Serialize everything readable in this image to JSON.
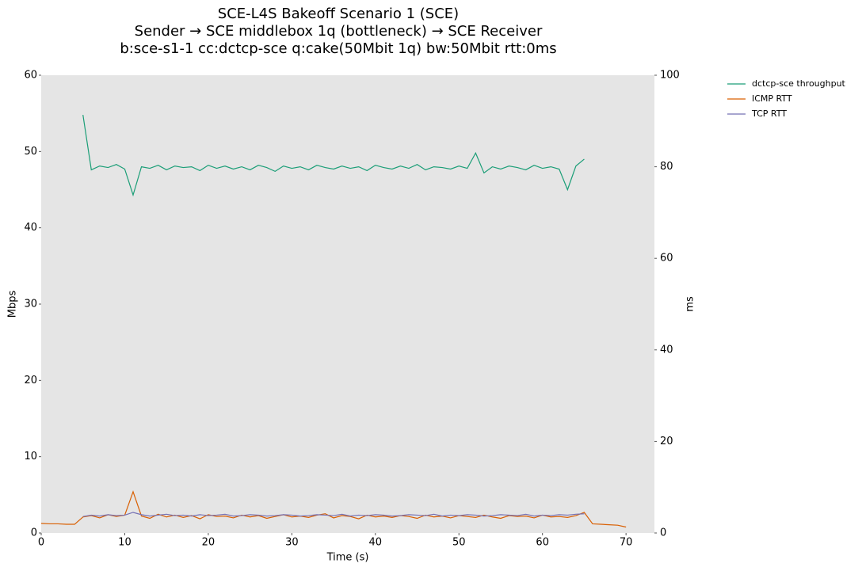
{
  "chart_data": {
    "type": "line",
    "title": [
      "SCE-L4S Bakeoff Scenario 1 (SCE)",
      "Sender → SCE middlebox 1q (bottleneck) → SCE Receiver",
      "b:sce-s1-1 cc:dctcp-sce q:cake(50Mbit 1q) bw:50Mbit rtt:0ms"
    ],
    "x_label": "Time (s)",
    "y_label": "Mbps",
    "y2_label": "ms",
    "xlim": [
      0,
      73.4
    ],
    "xticks": [
      0,
      10,
      20,
      30,
      40,
      50,
      60,
      70
    ],
    "ylim": [
      0,
      60
    ],
    "yticks": [
      0,
      10,
      20,
      30,
      40,
      50,
      60
    ],
    "y2lim": [
      0,
      100
    ],
    "y2ticks": [
      0,
      20,
      40,
      60,
      80,
      100
    ],
    "grid": false,
    "legend": "outside-upper-right",
    "x": [
      0,
      1,
      2,
      3,
      4,
      5,
      6,
      7,
      8,
      9,
      10,
      11,
      12,
      13,
      14,
      15,
      16,
      17,
      18,
      19,
      20,
      21,
      22,
      23,
      24,
      25,
      26,
      27,
      28,
      29,
      30,
      31,
      32,
      33,
      34,
      35,
      36,
      37,
      38,
      39,
      40,
      41,
      42,
      43,
      44,
      45,
      46,
      47,
      48,
      49,
      50,
      51,
      52,
      53,
      54,
      55,
      56,
      57,
      58,
      59,
      60,
      61,
      62,
      63,
      64,
      65,
      66,
      67,
      68,
      69,
      70
    ],
    "series": [
      {
        "name": "dctcp-sce throughput",
        "color": "#1b9e77",
        "axis": "y",
        "values": [
          null,
          null,
          null,
          null,
          null,
          54.8,
          47.6,
          48.1,
          47.9,
          48.3,
          47.7,
          44.3,
          48.0,
          47.8,
          48.2,
          47.6,
          48.1,
          47.9,
          48.0,
          47.5,
          48.2,
          47.8,
          48.1,
          47.7,
          48.0,
          47.6,
          48.2,
          47.9,
          47.4,
          48.1,
          47.8,
          48.0,
          47.6,
          48.2,
          47.9,
          47.7,
          48.1,
          47.8,
          48.0,
          47.5,
          48.2,
          47.9,
          47.7,
          48.1,
          47.8,
          48.3,
          47.6,
          48.0,
          47.9,
          47.7,
          48.1,
          47.8,
          49.8,
          47.2,
          48.0,
          47.7,
          48.1,
          47.9,
          47.6,
          48.2,
          47.8,
          48.0,
          47.7,
          45.0,
          48.1,
          49.0,
          null,
          null,
          null,
          null,
          null
        ]
      },
      {
        "name": "ICMP RTT",
        "color": "#d95f02",
        "axis": "y2",
        "values": [
          2.1,
          2.0,
          2.0,
          1.9,
          1.9,
          3.5,
          3.8,
          3.3,
          4.0,
          3.6,
          3.9,
          9.0,
          3.7,
          3.2,
          4.1,
          3.5,
          3.9,
          3.4,
          3.8,
          3.1,
          4.0,
          3.6,
          3.7,
          3.3,
          3.9,
          3.5,
          3.8,
          3.2,
          3.6,
          4.0,
          3.5,
          3.7,
          3.4,
          3.9,
          4.2,
          3.3,
          3.8,
          3.6,
          3.1,
          3.9,
          3.5,
          3.7,
          3.4,
          3.8,
          3.6,
          3.2,
          3.9,
          3.5,
          3.7,
          3.3,
          3.8,
          3.6,
          3.4,
          3.9,
          3.5,
          3.2,
          3.8,
          3.6,
          3.7,
          3.3,
          3.9,
          3.5,
          3.6,
          3.4,
          3.8,
          4.5,
          2.0,
          1.9,
          1.8,
          1.7,
          1.3
        ]
      },
      {
        "name": "TCP RTT",
        "color": "#7570b3",
        "axis": "y2",
        "values": [
          null,
          null,
          null,
          null,
          null,
          3.6,
          3.9,
          3.7,
          4.0,
          3.8,
          3.9,
          4.5,
          4.0,
          3.7,
          3.9,
          4.1,
          3.8,
          3.9,
          3.7,
          4.0,
          3.8,
          3.9,
          4.1,
          3.7,
          3.8,
          4.0,
          3.9,
          3.7,
          3.8,
          4.0,
          3.9,
          3.7,
          3.8,
          4.0,
          3.9,
          3.8,
          4.1,
          3.7,
          3.9,
          3.8,
          4.0,
          3.9,
          3.7,
          3.8,
          4.0,
          3.9,
          3.8,
          4.1,
          3.7,
          3.9,
          3.8,
          4.0,
          3.9,
          3.7,
          3.8,
          4.0,
          3.9,
          3.8,
          4.1,
          3.7,
          3.9,
          3.8,
          4.0,
          3.9,
          4.1,
          4.2,
          null,
          null,
          null,
          null,
          null
        ]
      }
    ]
  }
}
